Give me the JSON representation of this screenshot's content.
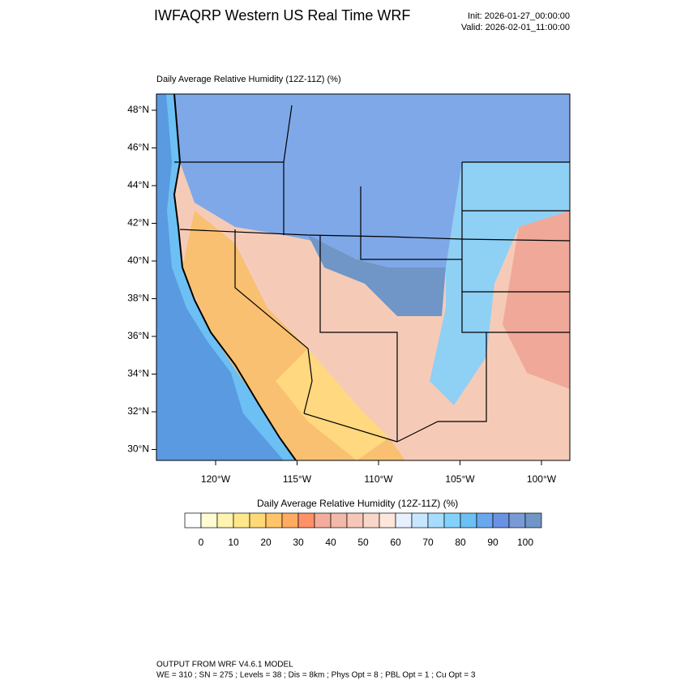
{
  "header": {
    "title": "IWFAQRP Western US Real Time WRF",
    "init": "Init: 2026-01-27_00:00:00",
    "valid": "Valid: 2026-02-01_11:00:00"
  },
  "map": {
    "subtitle": "Daily Average Relative Humidity (12Z-11Z)   (%)",
    "lat_labels": [
      "48°N",
      "46°N",
      "44°N",
      "42°N",
      "40°N",
      "38°N",
      "36°N",
      "34°N",
      "32°N",
      "30°N"
    ],
    "lon_labels": [
      "120°W",
      "115°W",
      "110°W",
      "105°W",
      "100°W"
    ]
  },
  "colorbar": {
    "title": "Daily Average Relative Humidity (12Z-11Z)  (%)",
    "labels": [
      0,
      10,
      20,
      30,
      40,
      50,
      60,
      70,
      80,
      90,
      100
    ],
    "colors": [
      "#ffffff",
      "#fffcd2",
      "#fff3b0",
      "#ffe88c",
      "#ffd978",
      "#ffc568",
      "#ffab62",
      "#ff9068",
      "#f4ad9c",
      "#f2b9a8",
      "#f6c7b8",
      "#f8d6ca",
      "#fde6dc",
      "#e6f0ff",
      "#c8e6ff",
      "#a8dcff",
      "#82d2fb",
      "#6cc0f4",
      "#6aa8ee",
      "#6a92e2",
      "#7a9ad6",
      "#6f96c6"
    ]
  },
  "footer": {
    "line1": "OUTPUT FROM WRF V4.6.1 MODEL",
    "line2": "WE = 310 ; SN = 275 ; Levels = 38 ; Dis = 8km ; Phys Opt = 8 ; PBL Opt = 1 ; Cu Opt = 3"
  }
}
